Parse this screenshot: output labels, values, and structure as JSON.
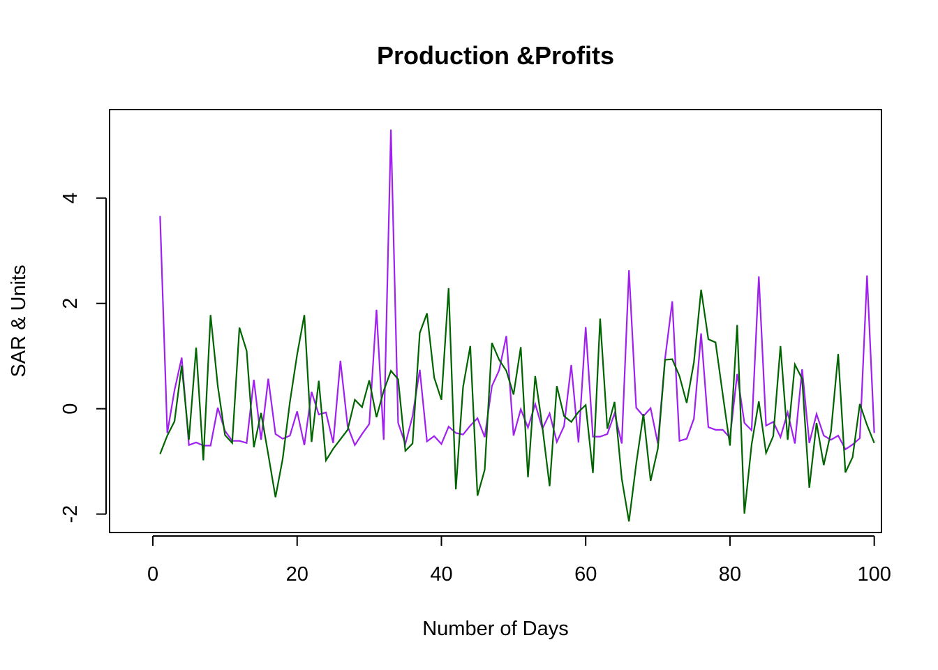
{
  "chart_data": {
    "type": "line",
    "title": "Production &Profits",
    "xlabel": "Number of Days",
    "ylabel": "SAR & Units",
    "xlim": [
      -6,
      101
    ],
    "ylim": [
      -2.35,
      5.68
    ],
    "x_ticks": [
      0,
      20,
      40,
      60,
      80,
      100
    ],
    "y_ticks": [
      -2,
      0,
      2,
      4
    ],
    "grid": false,
    "legend": "none",
    "x": [
      1,
      2,
      3,
      4,
      5,
      6,
      7,
      8,
      9,
      10,
      11,
      12,
      13,
      14,
      15,
      16,
      17,
      18,
      19,
      20,
      21,
      22,
      23,
      24,
      25,
      26,
      27,
      28,
      29,
      30,
      31,
      32,
      33,
      34,
      35,
      36,
      37,
      38,
      39,
      40,
      41,
      42,
      43,
      44,
      45,
      46,
      47,
      48,
      49,
      50,
      51,
      52,
      53,
      54,
      55,
      56,
      57,
      58,
      59,
      60,
      61,
      62,
      63,
      64,
      65,
      66,
      67,
      68,
      69,
      70,
      71,
      72,
      73,
      74,
      75,
      76,
      77,
      78,
      79,
      80,
      81,
      82,
      83,
      84,
      85,
      86,
      87,
      88,
      89,
      90,
      91,
      92,
      93,
      94,
      95,
      96,
      97,
      98,
      99,
      100
    ],
    "series": [
      {
        "color": "#a020f0",
        "values": [
          3.66,
          -0.46,
          0.35,
          0.97,
          -0.69,
          -0.64,
          -0.7,
          -0.7,
          0.02,
          -0.42,
          -0.61,
          -0.61,
          -0.65,
          0.55,
          -0.59,
          0.57,
          -0.48,
          -0.57,
          -0.51,
          -0.05,
          -0.69,
          0.32,
          -0.11,
          -0.07,
          -0.65,
          0.91,
          -0.33,
          -0.69,
          -0.48,
          -0.29,
          1.88,
          -0.59,
          5.3,
          -0.27,
          -0.67,
          -0.14,
          0.74,
          -0.62,
          -0.52,
          -0.67,
          -0.34,
          -0.46,
          -0.49,
          -0.32,
          -0.18,
          -0.54,
          0.43,
          0.73,
          1.38,
          -0.51,
          -0.01,
          -0.36,
          0.09,
          -0.38,
          -0.09,
          -0.63,
          -0.33,
          0.83,
          -0.64,
          1.55,
          -0.53,
          -0.53,
          -0.48,
          -0.09,
          -0.66,
          2.63,
          0.02,
          -0.14,
          0.01,
          -0.66,
          0.95,
          2.04,
          -0.61,
          -0.57,
          -0.19,
          1.43,
          -0.35,
          -0.4,
          -0.4,
          -0.55,
          0.66,
          -0.27,
          -0.41,
          2.51,
          -0.32,
          -0.25,
          -0.54,
          -0.07,
          -0.66,
          0.75,
          -0.65,
          -0.1,
          -0.51,
          -0.59,
          -0.51,
          -0.77,
          -0.68,
          -0.56,
          2.53,
          -0.46
        ]
      },
      {
        "color": "#006400",
        "values": [
          -0.86,
          -0.51,
          -0.24,
          0.82,
          -0.59,
          1.16,
          -0.98,
          1.78,
          0.43,
          -0.5,
          -0.65,
          1.54,
          1.1,
          -0.73,
          -0.08,
          -0.87,
          -1.68,
          -0.95,
          0.13,
          1.03,
          1.78,
          -0.63,
          0.53,
          -0.98,
          -0.76,
          -0.58,
          -0.4,
          0.17,
          0.03,
          0.54,
          -0.16,
          0.34,
          0.72,
          0.56,
          -0.8,
          -0.66,
          1.44,
          1.81,
          0.59,
          0.17,
          2.29,
          -1.53,
          0.41,
          1.19,
          -1.65,
          -1.16,
          1.25,
          0.93,
          0.72,
          0.27,
          1.17,
          -1.3,
          0.62,
          -0.35,
          -1.47,
          0.43,
          -0.14,
          -0.25,
          -0.06,
          0.07,
          -1.22,
          1.71,
          -0.38,
          0.13,
          -1.33,
          -2.14,
          -1.05,
          -0.1,
          -1.37,
          -0.76,
          0.93,
          0.94,
          0.62,
          0.11,
          0.88,
          2.26,
          1.32,
          1.26,
          0.27,
          -0.7,
          1.59,
          -1.99,
          -0.68,
          0.14,
          -0.84,
          -0.52,
          1.19,
          -0.59,
          0.84,
          0.57,
          -1.5,
          -0.27,
          -1.07,
          -0.44,
          1.04,
          -1.21,
          -0.92,
          0.09,
          -0.31,
          -0.65
        ]
      }
    ]
  }
}
